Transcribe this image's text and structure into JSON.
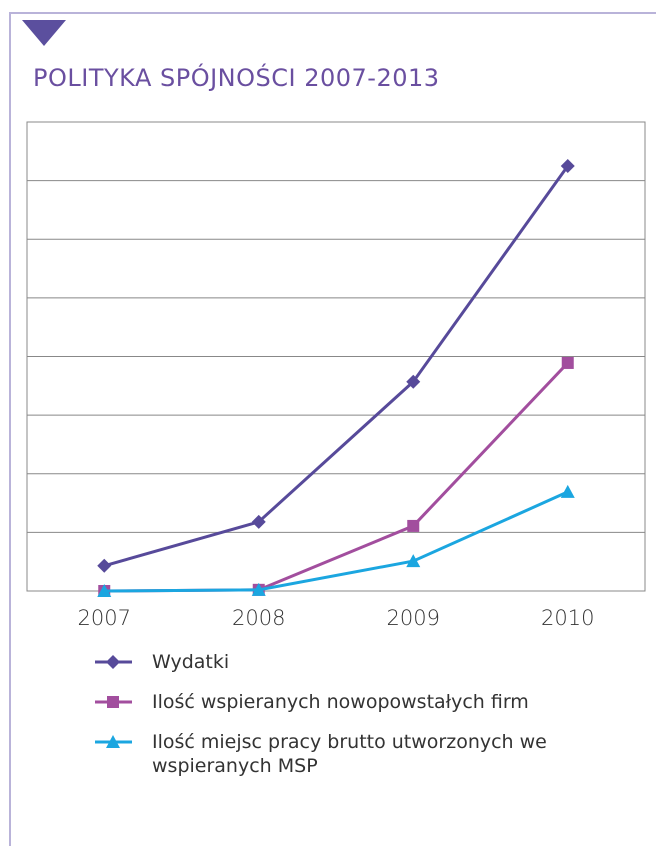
{
  "chart_data": {
    "type": "line",
    "title": "POLITYKA SPÓJNOŚCI 2007-2013",
    "categories": [
      "2007",
      "2008",
      "2009",
      "2010"
    ],
    "series": [
      {
        "name": "Wydatki",
        "color": "#574a9a",
        "marker": "diamond",
        "values": [
          0.43,
          1.18,
          3.57,
          7.25
        ]
      },
      {
        "name": "Ilość wspieranych nowopowstałych firm",
        "color": "#a24e9e",
        "marker": "square",
        "values": [
          0,
          0.02,
          1.11,
          3.89
        ]
      },
      {
        "name": "Ilość miejsc pracy brutto utworzonych we wspieranych MSP",
        "color": "#1ba6e0",
        "marker": "triangle",
        "values": [
          0,
          0.02,
          0.51,
          1.69
        ]
      }
    ],
    "ylim": [
      0,
      8
    ],
    "yticks": [
      0,
      1,
      2,
      3,
      4,
      5,
      6,
      7,
      8
    ],
    "grid": true,
    "legend": "bottom"
  }
}
